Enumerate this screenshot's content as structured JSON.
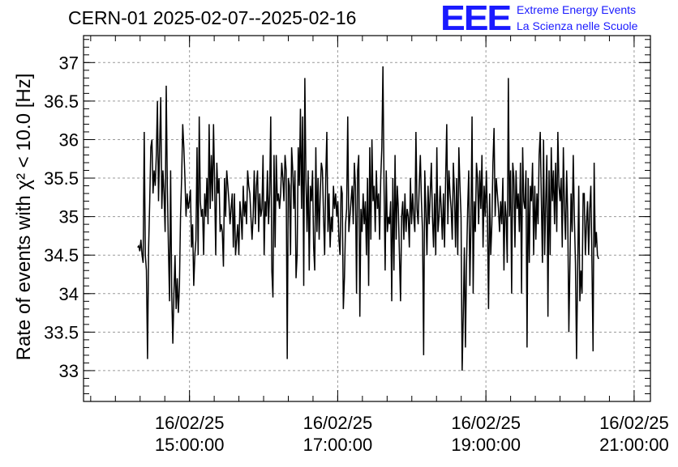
{
  "header": {
    "title": "CERN-01 2025-02-07--2025-02-16",
    "logo_text": "EEE",
    "logo_line1": "Extreme Energy Events",
    "logo_line2": "La Scienza nelle Scuole",
    "logo_color": "#1a1aff"
  },
  "chart_data": {
    "type": "line",
    "title": "CERN-01 2025-02-07--2025-02-16",
    "ylabel": "Rate of events with χ² < 10.0 [Hz]",
    "xlabel": "",
    "x_tick_labels": [
      [
        "16/02/25",
        "15:00:00"
      ],
      [
        "16/02/25",
        "17:00:00"
      ],
      [
        "16/02/25",
        "19:00:00"
      ],
      [
        "16/02/25",
        "21:00:00"
      ]
    ],
    "x_ticks_hours": [
      15,
      17,
      19,
      21
    ],
    "y_tick_labels": [
      "33",
      "33.5",
      "34",
      "34.5",
      "35",
      "35.5",
      "36",
      "36.5",
      "37"
    ],
    "xlim_hours": [
      13.57,
      21.22
    ],
    "ylim": [
      32.6,
      37.35
    ],
    "grid": true,
    "series_color": "#000000",
    "series": [
      {
        "x_start_hours": 14.3,
        "x_end_hours": 20.52,
        "values": [
          34.6,
          34.62,
          34.55,
          34.7,
          34.5,
          34.4,
          36.1,
          34.5,
          34.3,
          33.15,
          34.6,
          35.2,
          35.9,
          36.0,
          35.3,
          35.6,
          35.4,
          35.8,
          36.5,
          35.2,
          35.9,
          36.55,
          35.1,
          35.6,
          35.3,
          34.8,
          36.7,
          35.4,
          34.6,
          33.9,
          35.6,
          34.0,
          33.35,
          34.0,
          34.5,
          33.8,
          34.2,
          33.75,
          34.1,
          35.0,
          35.5,
          36.2,
          35.9,
          35.5,
          35.0,
          35.3,
          35.1,
          35.2,
          35.35,
          34.6,
          34.9,
          34.1,
          34.5,
          34.7,
          35.9,
          34.5,
          36.3,
          35.2,
          35.0,
          35.1,
          34.5,
          35.3,
          35.0,
          35.5,
          34.9,
          36.2,
          35.1,
          35.8,
          35.2,
          36.2,
          35.4,
          34.5,
          35.7,
          35.3,
          35.5,
          34.8,
          34.9,
          34.8,
          34.35,
          35.5,
          35.0,
          35.6,
          35.4,
          35.2,
          34.9,
          35.1,
          35.3,
          34.6,
          35.3,
          34.5,
          34.7,
          34.9,
          34.5,
          35.2,
          35.0,
          34.7,
          35.4,
          35.0,
          35.2,
          34.9,
          35.6,
          35.4,
          35.3,
          35.0,
          34.7,
          35.0,
          35.6,
          34.9,
          35.4,
          35.6,
          34.8,
          35.3,
          35.0,
          35.1,
          35.8,
          34.5,
          35.2,
          35.0,
          35.6,
          34.9,
          35.3,
          36.3,
          34.3,
          33.95,
          35.8,
          34.6,
          35.8,
          35.2,
          35.3,
          35.1,
          35.3,
          35.7,
          35.5,
          35.2,
          35.8,
          35.6,
          33.15,
          35.5,
          35.4,
          34.5,
          35.9,
          35.6,
          35.1,
          35.6,
          34.2,
          34.5,
          35.9,
          35.4,
          36.4,
          35.1,
          36.3,
          34.1,
          36.8,
          35.5,
          34.8,
          35.6,
          34.3,
          35.4,
          35.2,
          35.6,
          34.6,
          34.3,
          35.9,
          34.8,
          35.5,
          34.7,
          35.3,
          35.7,
          35.6,
          35.0,
          34.5,
          35.5,
          36.1,
          34.8,
          35.3,
          34.6,
          35.0,
          34.8,
          35.4,
          35.1,
          35.3,
          35.0,
          35.2,
          34.7,
          34.5,
          35.4,
          35.3,
          33.8,
          34.2,
          34.9,
          35.1,
          36.3,
          34.8,
          35.0,
          35.2,
          35.4,
          34.9,
          35.7,
          35.4,
          34.0,
          35.6,
          35.8,
          33.7,
          35.1,
          34.8,
          35.3,
          34.9,
          35.2,
          34.5,
          35.5,
          34.1,
          35.9,
          34.7,
          36.0,
          35.2,
          35.4,
          34.8,
          35.6,
          35.1,
          35.3,
          34.7,
          35.5,
          35.9,
          36.95,
          35.4,
          34.3,
          35.6,
          34.8,
          35.0,
          34.9,
          35.2,
          33.9,
          35.5,
          34.3,
          35.8,
          34.7,
          35.4,
          35.1,
          34.5,
          33.9,
          35.0,
          35.2,
          34.7,
          35.3,
          34.8,
          35.1,
          35.0,
          34.6,
          35.5,
          34.9,
          35.3,
          35.0,
          34.8,
          36.1,
          35.1,
          34.9,
          35.4,
          35.8,
          35.2,
          34.8,
          33.2,
          35.6,
          35.1,
          34.5,
          35.4,
          34.9,
          35.3,
          35.7,
          35.0,
          34.6,
          35.3,
          34.5,
          35.9,
          34.8,
          35.0,
          35.4,
          35.1,
          34.7,
          35.3,
          34.6,
          35.5,
          36.2,
          34.9,
          35.6,
          35.3,
          35.1,
          34.7,
          35.7,
          35.3,
          34.6,
          35.5,
          34.5,
          35.9,
          35.4,
          35.0,
          33.0,
          33.7,
          34.6,
          33.3,
          34.4,
          35.1,
          35.6,
          34.1,
          34.9,
          36.3,
          34.0,
          35.2,
          34.8,
          35.7,
          35.5,
          34.9,
          35.6,
          35.1,
          35.8,
          34.6,
          35.4,
          35.0,
          35.6,
          35.0,
          33.8,
          35.3,
          34.5,
          34.9,
          35.7,
          36.15,
          35.0,
          35.5,
          35.3,
          35.1,
          34.8,
          35.2,
          34.9,
          35.5,
          34.3,
          35.2,
          35.0,
          34.4,
          36.8,
          35.0,
          35.6,
          34.0,
          35.7,
          35.5,
          34.6,
          35.6,
          35.1,
          35.3,
          34.8,
          35.7,
          34.0,
          35.9,
          35.2,
          35.1,
          35.6,
          33.3,
          35.5,
          34.4,
          35.4,
          35.2,
          35.7,
          34.5,
          35.4,
          34.7,
          35.3,
          34.9,
          35.8,
          36.1,
          35.2,
          34.4,
          36.0,
          34.5,
          35.2,
          35.8,
          33.7,
          35.6,
          34.5,
          35.9,
          35.2,
          35.6,
          34.9,
          35.7,
          34.8,
          36.1,
          35.4,
          35.2,
          35.5,
          34.6,
          35.9,
          35.1,
          34.7,
          35.6,
          35.0,
          33.5,
          34.4,
          35.3,
          34.8,
          35.8,
          35.0,
          34.4,
          33.15,
          34.3,
          35.4,
          33.9,
          34.3,
          34.0,
          35.3,
          35.3,
          34.5,
          34.9,
          35.2,
          34.5,
          35.1,
          35.4,
          34.4,
          33.25,
          35.7,
          34.6,
          34.8,
          34.5,
          34.45
        ]
      }
    ]
  }
}
